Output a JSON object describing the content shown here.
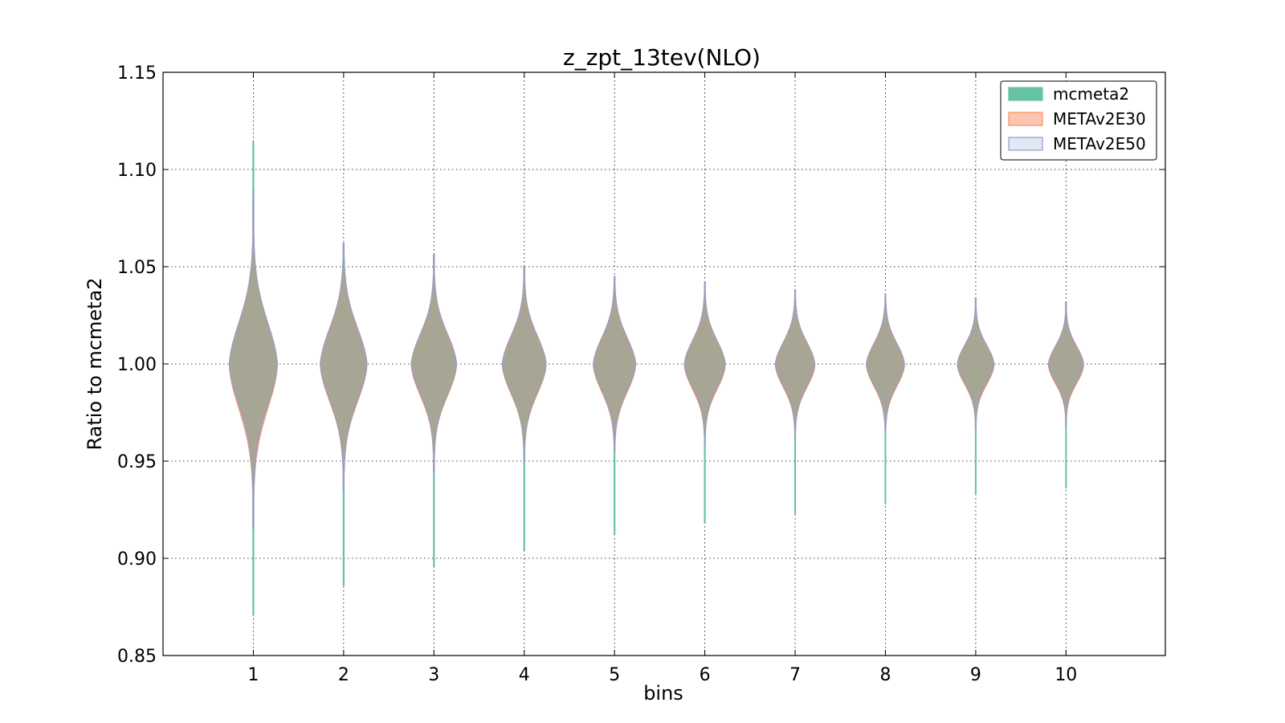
{
  "chart_data": {
    "type": "violin",
    "title": "z_zpt_13tev(NLO)",
    "xlabel": "bins",
    "ylabel": "Ratio to mcmeta2",
    "ylim": [
      0.85,
      1.15
    ],
    "xlim": [
      0,
      11.1
    ],
    "yticks": [
      0.85,
      0.9,
      0.95,
      1.0,
      1.05,
      1.1,
      1.15
    ],
    "ytick_labels": [
      "0.85",
      "0.90",
      "0.95",
      "1.00",
      "1.05",
      "1.10",
      "1.15"
    ],
    "categories": [
      "1",
      "2",
      "3",
      "4",
      "5",
      "6",
      "7",
      "8",
      "9",
      "10"
    ],
    "grid": true,
    "legend_position": "top-right",
    "series": [
      {
        "name": "mcmeta2",
        "fill": "#66c2a5",
        "stroke": "#66c2a5",
        "opacity": 1.0,
        "min": [
          0.871,
          0.886,
          0.896,
          0.904,
          0.912,
          0.918,
          0.923,
          0.928,
          0.933,
          0.936
        ],
        "max": [
          1.114,
          1.062,
          1.056,
          1.05,
          1.045,
          1.042,
          1.038,
          1.036,
          1.034,
          1.032
        ],
        "center": [
          1.0,
          1.0,
          1.0,
          1.0,
          1.0,
          1.0,
          1.0,
          1.0,
          1.0,
          1.0
        ],
        "spread": [
          0.022,
          0.019,
          0.016,
          0.015,
          0.014,
          0.0125,
          0.0115,
          0.011,
          0.01,
          0.0095
        ]
      },
      {
        "name": "METAv2E30",
        "fill": "#fc8d62",
        "stroke": "#fc8d62",
        "opacity": 0.5,
        "min": [
          0.915,
          0.935,
          0.944,
          0.95,
          0.955,
          0.958,
          0.962,
          0.965,
          0.967,
          0.968
        ],
        "max": [
          1.085,
          1.062,
          1.056,
          1.05,
          1.045,
          1.042,
          1.038,
          1.036,
          1.034,
          1.032
        ],
        "center": [
          0.999,
          0.999,
          0.999,
          0.999,
          0.999,
          0.999,
          0.999,
          0.999,
          0.999,
          0.999
        ],
        "spread": [
          0.023,
          0.019,
          0.016,
          0.015,
          0.014,
          0.0125,
          0.0115,
          0.011,
          0.01,
          0.0095
        ]
      },
      {
        "name": "METAv2E50",
        "fill": "#8da0cb",
        "stroke": "#8da0cb",
        "opacity": 0.25,
        "min": [
          0.915,
          0.935,
          0.944,
          0.95,
          0.955,
          0.958,
          0.962,
          0.965,
          0.967,
          0.968
        ],
        "max": [
          1.09,
          1.062,
          1.056,
          1.05,
          1.045,
          1.042,
          1.038,
          1.036,
          1.034,
          1.032
        ],
        "center": [
          1.0,
          1.0,
          1.0,
          1.0,
          1.0,
          1.0,
          1.0,
          1.0,
          1.0,
          1.0
        ],
        "spread": [
          0.022,
          0.019,
          0.016,
          0.015,
          0.014,
          0.0125,
          0.0115,
          0.011,
          0.01,
          0.0095
        ]
      }
    ]
  }
}
